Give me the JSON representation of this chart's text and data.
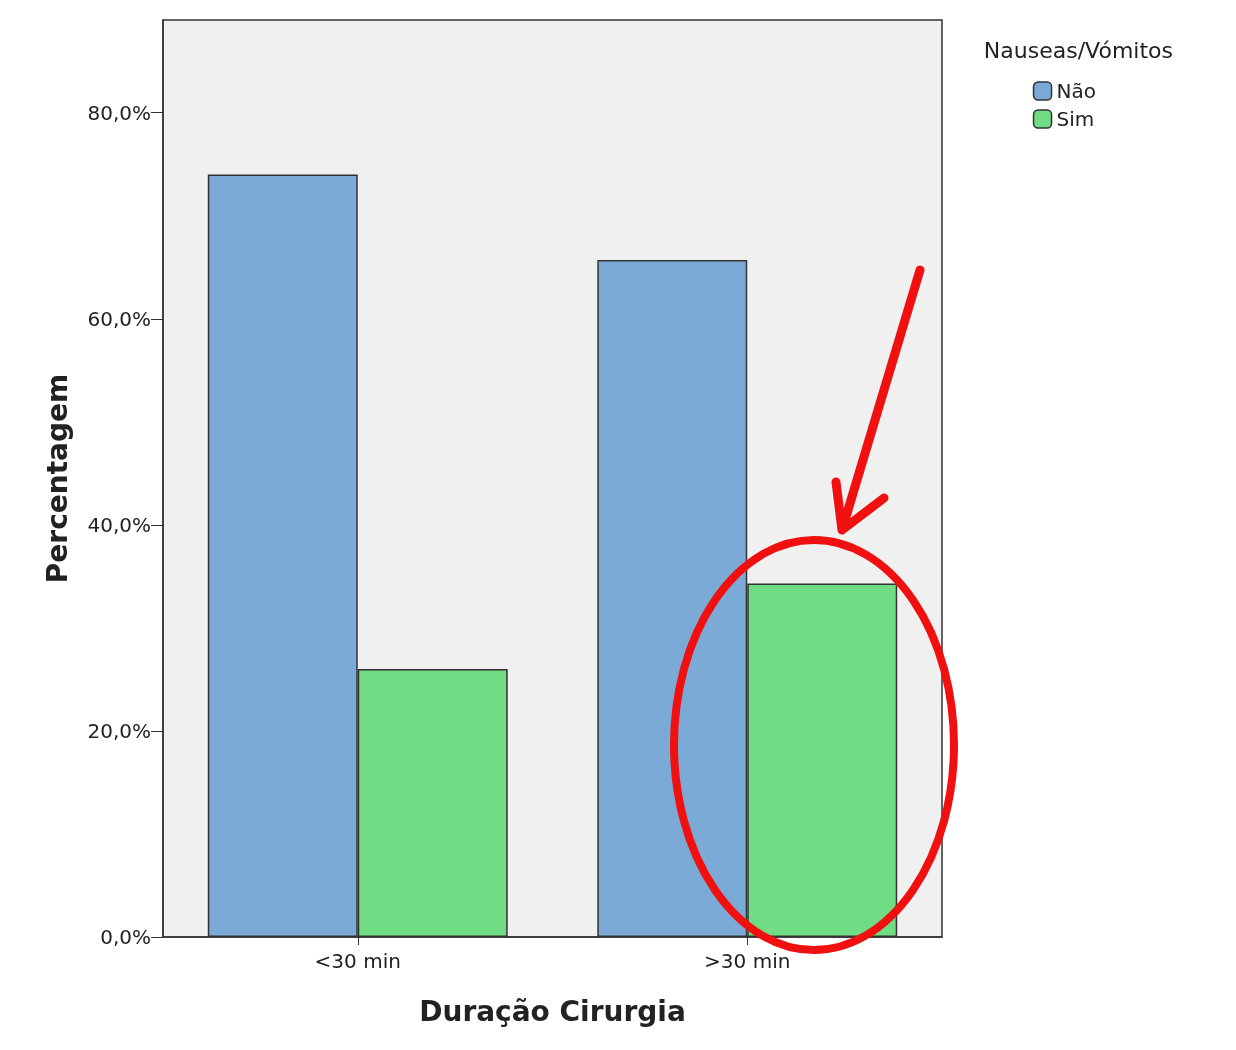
{
  "chart_data": {
    "type": "bar",
    "xlabel": "Duração Cirurgia",
    "ylabel": "Percentagem",
    "legend_title": "Nauseas/Vómitos",
    "categories": [
      "<30 min",
      ">30 min"
    ],
    "series": [
      {
        "name": "Não",
        "color": "#7baad6",
        "values": [
          74,
          65.7
        ]
      },
      {
        "name": "Sim",
        "color": "#70dc84",
        "values": [
          26,
          34.3
        ]
      }
    ],
    "ylim": [
      0,
      89
    ],
    "yticks": [
      {
        "value": 0,
        "label": "0,0%"
      },
      {
        "value": 20,
        "label": "20,0%"
      },
      {
        "value": 40,
        "label": "40,0%"
      },
      {
        "value": 60,
        "label": "60,0%"
      },
      {
        "value": 80,
        "label": "80,0%"
      }
    ],
    "grid": false,
    "legend": "top right"
  }
}
